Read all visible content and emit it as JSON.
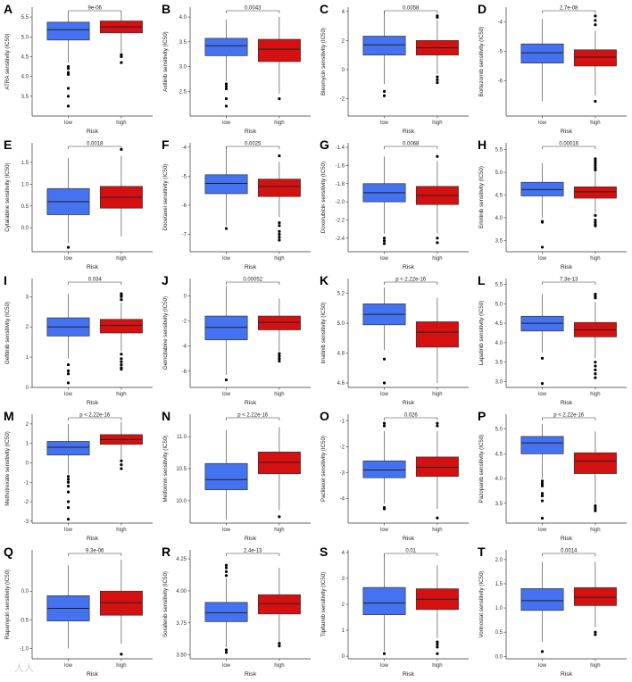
{
  "chart_data": [
    {
      "panel": "A",
      "type": "box",
      "ylabel": "ATRA sensitivity (IC50)",
      "xlabel": "Risk",
      "categories": [
        "low",
        "high"
      ],
      "pvalue": "9e-06",
      "yticks": [
        3.5,
        4.0,
        4.5,
        5.0,
        5.5
      ],
      "yticklabels": [
        "3.5",
        "4.0",
        "4.5",
        "5.0",
        "5.5"
      ],
      "ylim": [
        3.0,
        5.75
      ],
      "boxes": [
        {
          "q1": 4.92,
          "median": 5.18,
          "q3": 5.37,
          "whislo": 4.35,
          "whishi": 5.6,
          "outliers": [
            4.2,
            4.1,
            4.05,
            3.7,
            3.5,
            3.25,
            4.25
          ]
        },
        {
          "q1": 5.1,
          "median": 5.25,
          "q3": 5.4,
          "whislo": 4.6,
          "whishi": 5.6,
          "outliers": [
            4.55,
            4.5,
            4.35
          ]
        }
      ]
    },
    {
      "panel": "B",
      "type": "box",
      "ylabel": "Axitinib sensitivity (IC50)",
      "xlabel": "Risk",
      "categories": [
        "low",
        "high"
      ],
      "pvalue": "0.0043",
      "yticks": [
        2.5,
        3.0,
        3.5,
        4.0
      ],
      "yticklabels": [
        "2.5",
        "3.0",
        "3.5",
        "4.0"
      ],
      "ylim": [
        2.0,
        4.2
      ],
      "boxes": [
        {
          "q1": 3.22,
          "median": 3.42,
          "q3": 3.57,
          "whislo": 2.7,
          "whishi": 3.95,
          "outliers": [
            2.65,
            2.6,
            2.55,
            2.35,
            2.2
          ]
        },
        {
          "q1": 3.1,
          "median": 3.35,
          "q3": 3.55,
          "whislo": 2.45,
          "whishi": 4.0,
          "outliers": [
            2.35
          ]
        }
      ]
    },
    {
      "panel": "C",
      "type": "box",
      "ylabel": "Bleomycin sensitivity (IC50)",
      "xlabel": "Risk",
      "categories": [
        "low",
        "high"
      ],
      "pvalue": "0.0058",
      "yticks": [
        -2,
        0,
        2,
        4
      ],
      "yticklabels": [
        "-2",
        "0",
        "2",
        "4"
      ],
      "ylim": [
        -3.2,
        4.3
      ],
      "boxes": [
        {
          "q1": 1.0,
          "median": 1.7,
          "q3": 2.3,
          "whislo": -1.0,
          "whishi": 4.0,
          "outliers": [
            -1.5,
            -1.8
          ]
        },
        {
          "q1": 1.0,
          "median": 1.5,
          "q3": 2.0,
          "whislo": -0.3,
          "whishi": 3.4,
          "outliers": [
            3.7,
            3.6,
            -0.5,
            -0.7,
            -0.9
          ]
        }
      ]
    },
    {
      "panel": "D",
      "type": "box",
      "ylabel": "Bortezomib sensitivity (IC50)",
      "xlabel": "Risk",
      "categories": [
        "low",
        "high"
      ],
      "pvalue": "2.7e-08",
      "yticks": [
        -4,
        -5,
        -6
      ],
      "yticklabels": [
        "-4",
        "-5",
        "-6"
      ],
      "ylim": [
        -7.2,
        -3.5
      ],
      "boxes": [
        {
          "q1": -5.4,
          "median": -5.05,
          "q3": -4.75,
          "whislo": -6.7,
          "whishi": -3.9,
          "outliers": []
        },
        {
          "q1": -5.5,
          "median": -5.2,
          "q3": -4.95,
          "whislo": -6.5,
          "whishi": -4.3,
          "outliers": [
            -3.8,
            -3.95,
            -4.1,
            -6.7
          ]
        }
      ]
    },
    {
      "panel": "E",
      "type": "box",
      "ylabel": "Cytarabine sensitivity (IC50)",
      "xlabel": "Risk",
      "categories": [
        "low",
        "high"
      ],
      "pvalue": "0.0018",
      "yticks": [
        0.0,
        0.5,
        1.0,
        1.5
      ],
      "yticklabels": [
        "0.0",
        "0.5",
        "1.0",
        "1.5"
      ],
      "ylim": [
        -0.55,
        1.95
      ],
      "boxes": [
        {
          "q1": 0.3,
          "median": 0.6,
          "q3": 0.9,
          "whislo": -0.35,
          "whishi": 1.6,
          "outliers": [
            -0.45
          ]
        },
        {
          "q1": 0.45,
          "median": 0.7,
          "q3": 0.95,
          "whislo": -0.2,
          "whishi": 1.65,
          "outliers": [
            1.8
          ]
        }
      ]
    },
    {
      "panel": "F",
      "type": "box",
      "ylabel": "Docetaxel sensitivity (IC50)",
      "xlabel": "Risk",
      "categories": [
        "low",
        "high"
      ],
      "pvalue": "0.0025",
      "yticks": [
        -4,
        -5,
        -6,
        -7
      ],
      "yticklabels": [
        "-4",
        "-5",
        "-6",
        "-7"
      ],
      "ylim": [
        -7.6,
        -3.85
      ],
      "boxes": [
        {
          "q1": -5.6,
          "median": -5.25,
          "q3": -4.95,
          "whislo": -6.7,
          "whishi": -4.0,
          "outliers": [
            -6.8
          ]
        },
        {
          "q1": -5.7,
          "median": -5.35,
          "q3": -5.1,
          "whislo": -6.4,
          "whishi": -4.5,
          "outliers": [
            -4.3,
            -6.6,
            -6.7,
            -6.9,
            -7.0,
            -7.1,
            -7.2
          ]
        }
      ]
    },
    {
      "panel": "G",
      "type": "box",
      "ylabel": "Doxorubicin sensitivity (IC50)",
      "xlabel": "Risk",
      "categories": [
        "low",
        "high"
      ],
      "pvalue": "0.0068",
      "yticks": [
        -1.4,
        -1.6,
        -1.8,
        -2.0,
        -2.2,
        -2.4
      ],
      "yticklabels": [
        "-1.4",
        "-1.6",
        "-1.8",
        "-2.0",
        "-2.2",
        "-2.4"
      ],
      "ylim": [
        -2.55,
        -1.35
      ],
      "boxes": [
        {
          "q1": -2.0,
          "median": -1.9,
          "q3": -1.8,
          "whislo": -2.35,
          "whishi": -1.5,
          "outliers": [
            -2.4,
            -2.43,
            -2.46
          ]
        },
        {
          "q1": -2.03,
          "median": -1.93,
          "q3": -1.83,
          "whislo": -2.35,
          "whishi": -1.55,
          "outliers": [
            -1.5,
            -2.4,
            -2.45
          ]
        }
      ]
    },
    {
      "panel": "H",
      "type": "box",
      "ylabel": "Erlotinib sensitivity (IC50)",
      "xlabel": "Risk",
      "categories": [
        "low",
        "high"
      ],
      "pvalue": "0.00016",
      "yticks": [
        3.5,
        4.0,
        4.5,
        5.0,
        5.5
      ],
      "yticklabels": [
        "3.5",
        "4.0",
        "4.5",
        "5.0",
        "5.5"
      ],
      "ylim": [
        3.25,
        5.65
      ],
      "boxes": [
        {
          "q1": 4.48,
          "median": 4.62,
          "q3": 4.78,
          "whislo": 4.0,
          "whishi": 5.2,
          "outliers": [
            3.9,
            3.92,
            3.35
          ]
        },
        {
          "q1": 4.43,
          "median": 4.57,
          "q3": 4.68,
          "whislo": 4.1,
          "whishi": 5.0,
          "outliers": [
            5.05,
            5.1,
            5.15,
            5.2,
            5.25,
            5.3,
            4.05,
            3.95,
            3.9,
            3.85,
            3.82
          ]
        }
      ]
    },
    {
      "panel": "I",
      "type": "box",
      "ylabel": "Gefitinib sensitivity (IC50)",
      "xlabel": "Risk",
      "categories": [
        "low",
        "high"
      ],
      "pvalue": "0.034",
      "yticks": [
        0,
        1,
        2,
        3
      ],
      "yticklabels": [
        "0",
        "1",
        "2",
        "3"
      ],
      "ylim": [
        0,
        3.6
      ],
      "boxes": [
        {
          "q1": 1.7,
          "median": 2.0,
          "q3": 2.3,
          "whislo": 0.95,
          "whishi": 3.1,
          "outliers": [
            0.75,
            0.55,
            0.45,
            0.15
          ]
        },
        {
          "q1": 1.8,
          "median": 2.05,
          "q3": 2.25,
          "whislo": 1.2,
          "whishi": 2.8,
          "outliers": [
            2.9,
            3.0,
            3.05,
            3.1,
            1.1,
            0.95,
            0.85,
            0.75,
            0.65,
            0.6
          ]
        }
      ]
    },
    {
      "panel": "J",
      "type": "box",
      "ylabel": "Gemcitabine sensitivity (IC50)",
      "xlabel": "Risk",
      "categories": [
        "low",
        "high"
      ],
      "pvalue": "0.00052",
      "yticks": [
        0,
        -2,
        -4,
        -6
      ],
      "yticklabels": [
        "0",
        "-2",
        "-4",
        "-6"
      ],
      "ylim": [
        -7.3,
        1.4
      ],
      "boxes": [
        {
          "q1": -3.5,
          "median": -2.5,
          "q3": -1.6,
          "whislo": -6.3,
          "whishi": 0.8,
          "outliers": [
            -6.7
          ]
        },
        {
          "q1": -2.7,
          "median": -2.1,
          "q3": -1.6,
          "whislo": -4.4,
          "whishi": -0.2,
          "outliers": [
            -4.6,
            -4.8,
            -5.0,
            -5.2
          ]
        }
      ]
    },
    {
      "panel": "K",
      "type": "box",
      "ylabel": "Imatinib sensitivity (IC50)",
      "xlabel": "Risk",
      "categories": [
        "low",
        "high"
      ],
      "pvalue": "p < 2.22e-16",
      "yticks": [
        4.6,
        4.8,
        5.0,
        5.2
      ],
      "yticklabels": [
        "4.6",
        "4.8",
        "5.0",
        "5.2"
      ],
      "ylim": [
        4.57,
        5.3
      ],
      "boxes": [
        {
          "q1": 4.99,
          "median": 5.06,
          "q3": 5.13,
          "whislo": 4.82,
          "whishi": 5.24,
          "outliers": [
            4.76,
            4.6
          ]
        },
        {
          "q1": 4.84,
          "median": 4.94,
          "q3": 5.01,
          "whislo": 4.6,
          "whishi": 5.17,
          "outliers": []
        }
      ]
    },
    {
      "panel": "L",
      "type": "box",
      "ylabel": "Lapatinib sensitivity (IC50)",
      "xlabel": "Risk",
      "categories": [
        "low",
        "high"
      ],
      "pvalue": "7.3e-13",
      "yticks": [
        3.0,
        3.5,
        4.0,
        4.5,
        5.0,
        5.5
      ],
      "yticklabels": [
        "3.0",
        "3.5",
        "4.0",
        "4.5",
        "5.0",
        "5.5"
      ],
      "ylim": [
        2.85,
        5.65
      ],
      "boxes": [
        {
          "q1": 4.3,
          "median": 4.5,
          "q3": 4.68,
          "whislo": 3.75,
          "whishi": 5.25,
          "outliers": [
            3.6,
            2.95
          ]
        },
        {
          "q1": 4.15,
          "median": 4.33,
          "q3": 4.52,
          "whislo": 3.6,
          "whishi": 5.05,
          "outliers": [
            5.15,
            5.2,
            5.25,
            3.5,
            3.4,
            3.3,
            3.2,
            3.1
          ]
        }
      ]
    },
    {
      "panel": "M",
      "type": "box",
      "ylabel": "Methotrexate sensitivity (IC50)",
      "xlabel": "Risk",
      "categories": [
        "low",
        "high"
      ],
      "pvalue": "p < 2.22e-16",
      "yticks": [
        -3,
        -2,
        -1,
        0,
        1,
        2
      ],
      "yticklabels": [
        "-3",
        "-2",
        "-1",
        "0",
        "1",
        "2"
      ],
      "ylim": [
        -3.1,
        2.5
      ],
      "boxes": [
        {
          "q1": 0.4,
          "median": 0.8,
          "q3": 1.1,
          "whislo": -0.6,
          "whishi": 2.0,
          "outliers": [
            -0.7,
            -0.85,
            -1.0,
            -1.2,
            -1.5,
            -2.0,
            -2.3,
            -2.9
          ]
        },
        {
          "q1": 0.95,
          "median": 1.2,
          "q3": 1.45,
          "whislo": 0.2,
          "whishi": 2.1,
          "outliers": [
            0.1,
            -0.1,
            -0.3
          ]
        }
      ]
    },
    {
      "panel": "N",
      "type": "box",
      "ylabel": "Metformin sensitivity (IC50)",
      "xlabel": "Risk",
      "categories": [
        "low",
        "high"
      ],
      "pvalue": "p < 2.22e-16",
      "yticks": [
        10.0,
        10.5,
        11.0
      ],
      "yticklabels": [
        "10.0",
        "10.5",
        "11.0"
      ],
      "ylim": [
        9.65,
        11.35
      ],
      "boxes": [
        {
          "q1": 10.17,
          "median": 10.33,
          "q3": 10.58,
          "whislo": 9.7,
          "whishi": 11.1,
          "outliers": []
        },
        {
          "q1": 10.42,
          "median": 10.6,
          "q3": 10.76,
          "whislo": 9.85,
          "whishi": 11.15,
          "outliers": [
            9.75
          ]
        }
      ]
    },
    {
      "panel": "O",
      "type": "box",
      "ylabel": "Paclitaxel sensitivity (IC50)",
      "xlabel": "Risk",
      "categories": [
        "low",
        "high"
      ],
      "pvalue": "0.026",
      "yticks": [
        -1,
        -2,
        -3,
        -4
      ],
      "yticklabels": [
        "-1",
        "-2",
        "-3",
        "-4"
      ],
      "ylim": [
        -4.95,
        -0.75
      ],
      "boxes": [
        {
          "q1": -3.2,
          "median": -2.9,
          "q3": -2.55,
          "whislo": -4.2,
          "whishi": -1.4,
          "outliers": [
            -1.1,
            -1.2,
            -4.35,
            -4.4
          ]
        },
        {
          "q1": -3.15,
          "median": -2.8,
          "q3": -2.4,
          "whislo": -4.4,
          "whishi": -1.4,
          "outliers": [
            -1.1,
            -1.2,
            -4.75
          ]
        }
      ]
    },
    {
      "panel": "P",
      "type": "box",
      "ylabel": "Pazopanib sensitivity (IC50)",
      "xlabel": "Risk",
      "categories": [
        "low",
        "high"
      ],
      "pvalue": "p < 2.22e-16",
      "yticks": [
        3.5,
        4.0,
        4.5,
        5.0
      ],
      "yticklabels": [
        "3.5",
        "4.0",
        "4.5",
        "5.0"
      ],
      "ylim": [
        3.1,
        5.3
      ],
      "boxes": [
        {
          "q1": 4.5,
          "median": 4.72,
          "q3": 4.85,
          "whislo": 4.0,
          "whishi": 5.1,
          "outliers": [
            3.95,
            3.9,
            3.85,
            3.7,
            3.65,
            3.55,
            3.2
          ]
        },
        {
          "q1": 4.1,
          "median": 4.35,
          "q3": 4.52,
          "whislo": 3.5,
          "whishi": 4.95,
          "outliers": [
            3.45,
            3.4,
            3.35
          ]
        }
      ]
    },
    {
      "panel": "Q",
      "type": "box",
      "ylabel": "Rapamycin sensitivity (IC50)",
      "xlabel": "Risk",
      "categories": [
        "low",
        "high"
      ],
      "pvalue": "9.3e-06",
      "yticks": [
        0.0,
        -0.5,
        -1.0
      ],
      "yticklabels": [
        "0.0",
        "-0.5",
        "-1.0"
      ],
      "ylim": [
        -1.18,
        0.72
      ],
      "boxes": [
        {
          "q1": -0.52,
          "median": -0.3,
          "q3": -0.08,
          "whislo": -1.0,
          "whishi": 0.45,
          "outliers": []
        },
        {
          "q1": -0.42,
          "median": -0.2,
          "q3": 0.0,
          "whislo": -0.92,
          "whishi": 0.55,
          "outliers": [
            -1.1
          ]
        }
      ]
    },
    {
      "panel": "R",
      "type": "box",
      "ylabel": "Sorafenib sensitivity (IC50)",
      "xlabel": "Risk",
      "categories": [
        "low",
        "high"
      ],
      "pvalue": "2.4e-13",
      "yticks": [
        3.5,
        3.75,
        4.0,
        4.25
      ],
      "yticklabels": [
        "3.50",
        "3.75",
        "4.00",
        "4.25"
      ],
      "ylim": [
        3.47,
        4.32
      ],
      "boxes": [
        {
          "q1": 3.76,
          "median": 3.83,
          "q3": 3.91,
          "whislo": 3.56,
          "whishi": 4.1,
          "outliers": [
            4.2,
            4.18,
            4.15,
            4.12,
            3.54,
            3.52
          ]
        },
        {
          "q1": 3.82,
          "median": 3.9,
          "q3": 3.97,
          "whislo": 3.6,
          "whishi": 4.18,
          "outliers": [
            3.59,
            3.57
          ]
        }
      ]
    },
    {
      "panel": "S",
      "type": "box",
      "ylabel": "Tipifarnib sensitivity (IC50)",
      "xlabel": "Risk",
      "categories": [
        "low",
        "high"
      ],
      "pvalue": "0.01",
      "yticks": [
        0,
        1,
        2,
        3,
        4
      ],
      "yticklabels": [
        "0",
        "1",
        "2",
        "3",
        "4"
      ],
      "ylim": [
        -0.1,
        4.1
      ],
      "boxes": [
        {
          "q1": 1.6,
          "median": 2.05,
          "q3": 2.65,
          "whislo": 0.2,
          "whishi": 3.9,
          "outliers": [
            0.1
          ]
        },
        {
          "q1": 1.8,
          "median": 2.2,
          "q3": 2.6,
          "whislo": 0.7,
          "whishi": 3.5,
          "outliers": [
            0.55,
            0.45,
            0.35,
            0.1
          ]
        }
      ]
    },
    {
      "panel": "T",
      "type": "box",
      "ylabel": "Vorinostat sensitivity (IC50)",
      "xlabel": "Risk",
      "categories": [
        "low",
        "high"
      ],
      "pvalue": "0.0014",
      "yticks": [
        0.0,
        0.5,
        1.0,
        1.5,
        2.0
      ],
      "yticklabels": [
        "0.0",
        "0.5",
        "1.0",
        "1.5",
        "2.0"
      ],
      "ylim": [
        -0.05,
        2.2
      ],
      "boxes": [
        {
          "q1": 0.95,
          "median": 1.15,
          "q3": 1.4,
          "whislo": 0.3,
          "whishi": 1.95,
          "outliers": [
            0.1
          ]
        },
        {
          "q1": 1.05,
          "median": 1.22,
          "q3": 1.42,
          "whislo": 0.6,
          "whishi": 1.95,
          "outliers": [
            0.5,
            0.45
          ]
        }
      ]
    }
  ],
  "colors": {
    "low": "#4472f0",
    "high": "#d41010",
    "axis": "#333333"
  },
  "watermark": "人人"
}
